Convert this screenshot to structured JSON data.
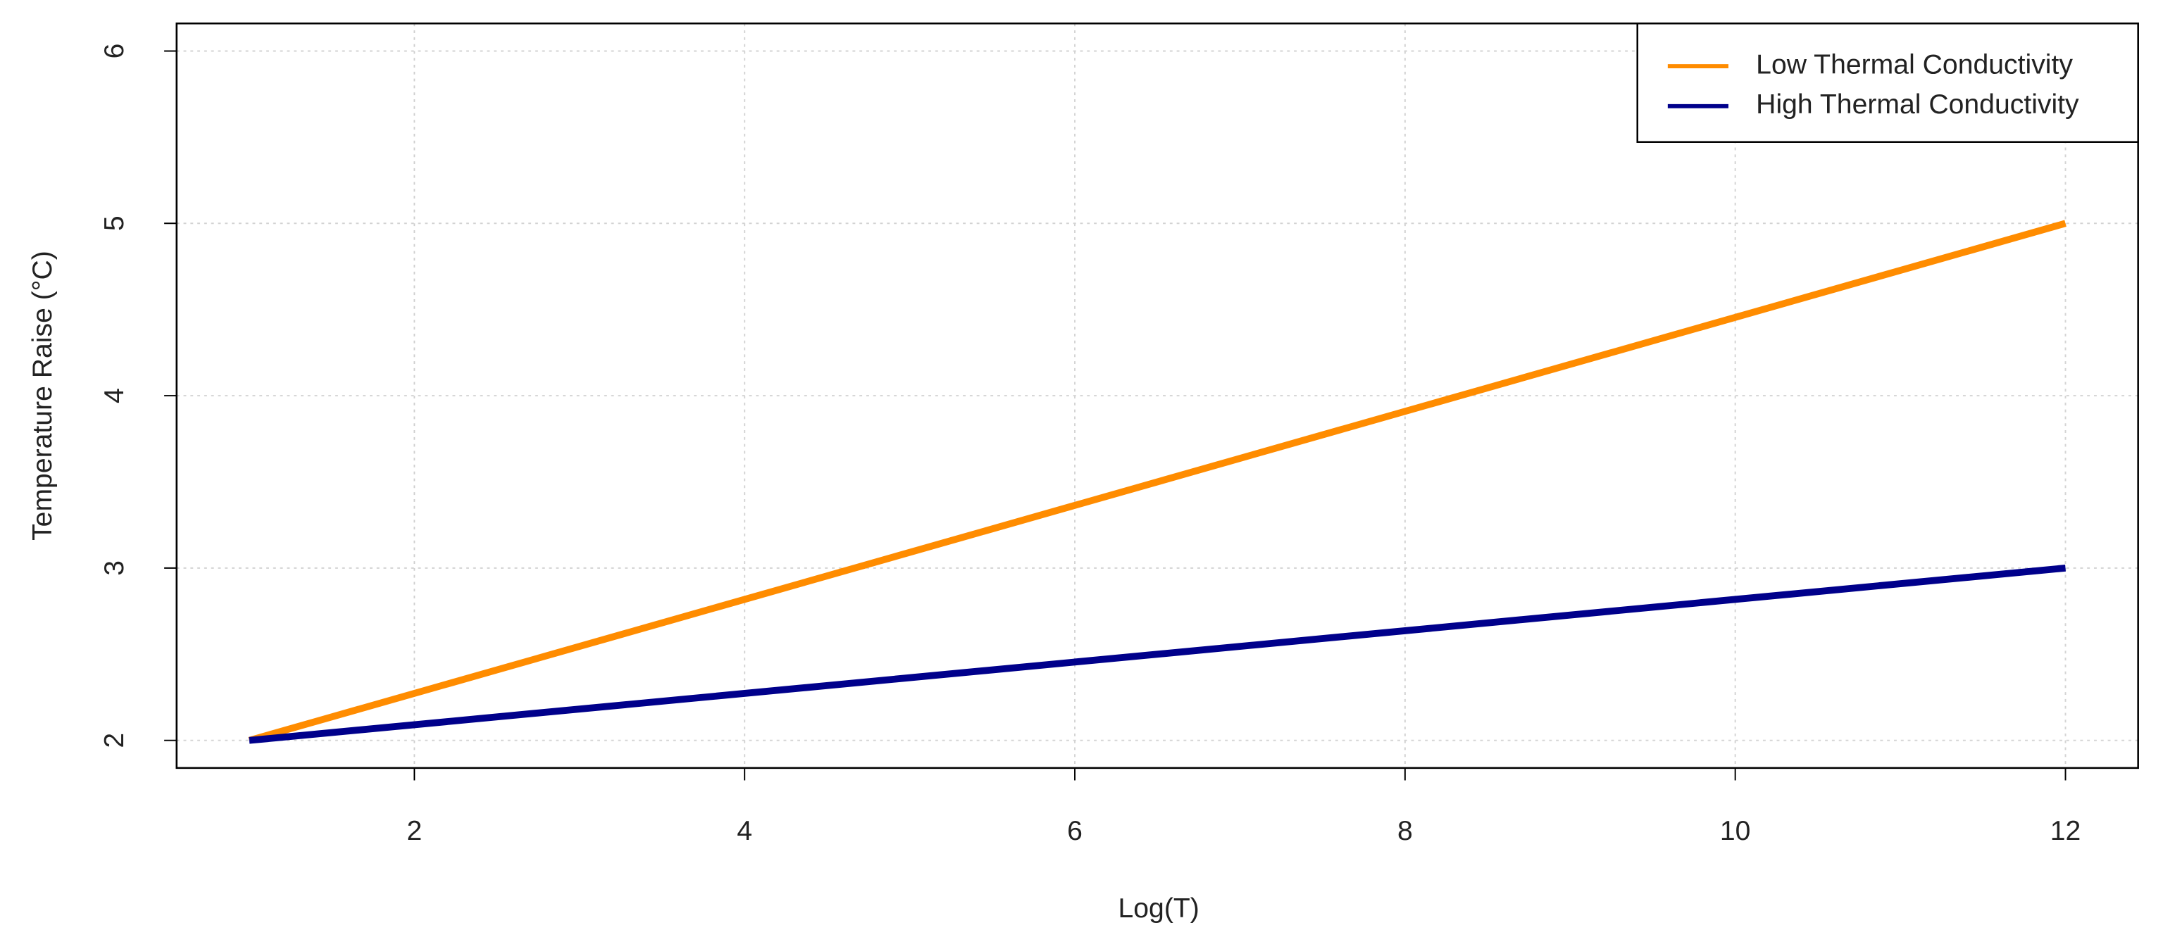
{
  "chart_data": {
    "type": "line",
    "x_label": "Log(T)",
    "y_label": "Temperature Raise (°C)",
    "x": [
      1,
      12
    ],
    "series": [
      {
        "name": "Low Thermal Conductivity",
        "color": "#ff8c00",
        "values": [
          2,
          5
        ]
      },
      {
        "name": "High Thermal Conductivity",
        "color": "#00008b",
        "values": [
          2,
          3
        ]
      }
    ],
    "xlim": [
      0.56,
      12.44
    ],
    "xticks": [
      2,
      4,
      6,
      8,
      10,
      12
    ],
    "ylim": [
      1.84,
      6.16
    ],
    "yticks": [
      2,
      3,
      4,
      5,
      6
    ],
    "grid": true,
    "legend_position": "top-right"
  }
}
